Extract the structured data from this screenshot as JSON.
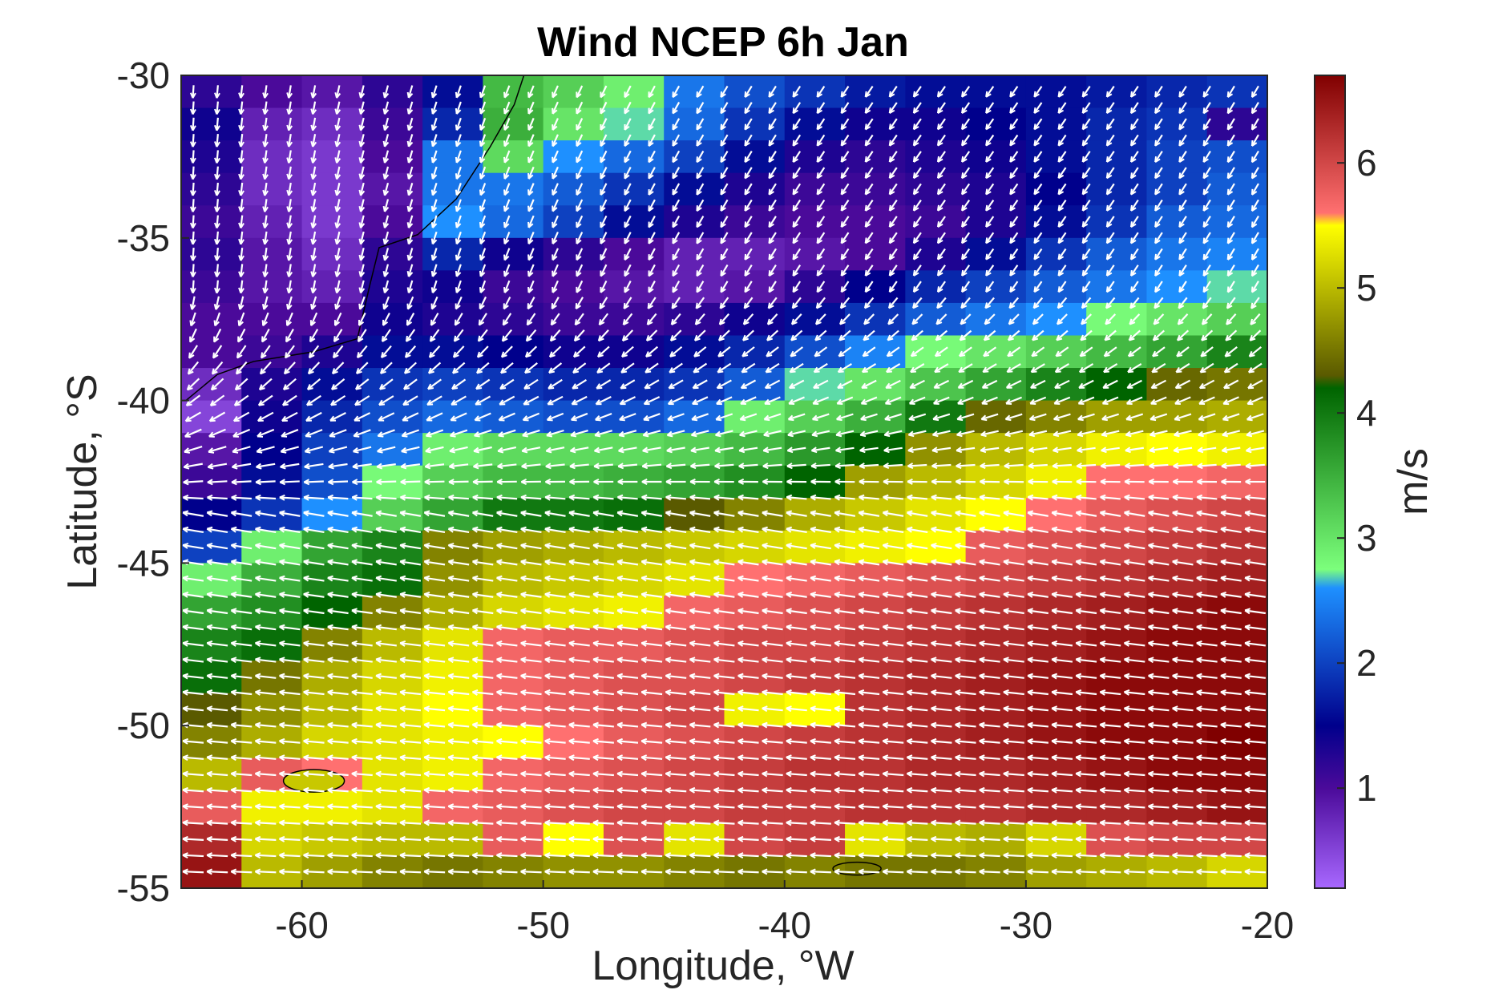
{
  "chart_data": {
    "type": "heatmap",
    "title": "Wind NCEP 6h Jan",
    "xlabel": "Longitude, °W",
    "ylabel": "Latitude, °S",
    "xlim": [
      -65,
      -20
    ],
    "ylim": [
      -55,
      -30
    ],
    "xticks": [
      -60,
      -50,
      -40,
      -30,
      -20
    ],
    "yticks": [
      -30,
      -35,
      -40,
      -45,
      -50,
      -55
    ],
    "colorbar": {
      "label": "m/s",
      "range": [
        0.2,
        6.7
      ],
      "ticks": [
        1,
        2,
        3,
        4,
        5,
        6
      ],
      "colors": [
        "#a868ff",
        "#4b0a9a",
        "#00008c",
        "#1e90ff",
        "#7cff7c",
        "#006400",
        "#5a5a00",
        "#ffff00",
        "#ff7070",
        "#800000"
      ],
      "stops": [
        0.2,
        1.0,
        1.5,
        2.6,
        2.75,
        4.2,
        4.3,
        5.5,
        5.6,
        6.7
      ]
    },
    "grid_speed": {
      "description_rows": "rows from latitude -30.5 (north) to -54.5 (south), 1 degree step; columns from -65 to -20, 2.5 degree step",
      "lat": [
        -30.5,
        -31.5,
        -32.5,
        -33.5,
        -34.5,
        -35.5,
        -36.5,
        -37.5,
        -38.5,
        -39.5,
        -40.5,
        -41.5,
        -42.5,
        -43.5,
        -44.5,
        -45.5,
        -46.5,
        -47.5,
        -48.5,
        -49.5,
        -50.5,
        -51.5,
        -52.5,
        -53.5,
        -54.5
      ],
      "lon": [
        -63.75,
        -61.25,
        -58.75,
        -56.25,
        -53.75,
        -51.25,
        -48.75,
        -46.25,
        -43.75,
        -41.25,
        -38.75,
        -36.25,
        -33.75,
        -31.25,
        -28.75,
        -26.25,
        -23.75,
        -21.25
      ],
      "values": [
        [
          1.2,
          1.0,
          0.9,
          1.2,
          1.6,
          3.4,
          3.2,
          2.9,
          2.4,
          2.1,
          1.9,
          1.7,
          1.6,
          1.6,
          1.6,
          1.7,
          1.8,
          1.9
        ],
        [
          1.4,
          0.8,
          0.7,
          1.1,
          1.8,
          3.5,
          3.0,
          2.7,
          2.3,
          1.9,
          1.6,
          1.4,
          1.4,
          1.5,
          1.6,
          1.8,
          1.9,
          1.2
        ],
        [
          1.3,
          0.7,
          0.6,
          1.0,
          2.4,
          3.1,
          2.6,
          2.3,
          2.0,
          1.6,
          1.3,
          1.2,
          1.3,
          1.4,
          1.6,
          1.8,
          2.0,
          2.1
        ],
        [
          1.2,
          0.7,
          0.6,
          0.9,
          2.4,
          2.4,
          2.2,
          1.9,
          1.6,
          1.3,
          1.1,
          1.1,
          1.2,
          1.3,
          1.5,
          1.8,
          2.0,
          2.2
        ],
        [
          1.1,
          0.8,
          0.6,
          1.0,
          2.6,
          2.3,
          2.0,
          1.6,
          1.3,
          1.1,
          1.0,
          1.0,
          1.1,
          1.3,
          1.6,
          1.9,
          2.2,
          2.3
        ],
        [
          1.2,
          0.9,
          0.7,
          1.2,
          1.8,
          1.4,
          1.2,
          1.0,
          0.8,
          0.8,
          0.9,
          1.0,
          1.3,
          1.6,
          1.9,
          2.2,
          2.4,
          2.5
        ],
        [
          1.1,
          0.9,
          0.8,
          1.3,
          1.4,
          1.1,
          1.0,
          0.9,
          0.8,
          0.9,
          1.2,
          1.5,
          1.8,
          2.0,
          2.2,
          2.4,
          2.6,
          2.7
        ],
        [
          1.0,
          1.0,
          1.0,
          1.4,
          1.3,
          1.2,
          1.1,
          1.1,
          1.2,
          1.4,
          1.6,
          1.9,
          2.2,
          2.4,
          2.6,
          2.8,
          3.0,
          3.2
        ],
        [
          1.0,
          1.1,
          1.3,
          1.6,
          1.6,
          1.5,
          1.4,
          1.4,
          1.6,
          1.8,
          2.1,
          2.5,
          2.8,
          3.0,
          3.2,
          3.4,
          3.6,
          3.9
        ],
        [
          0.7,
          1.3,
          1.6,
          1.9,
          2.0,
          1.9,
          1.8,
          1.8,
          1.9,
          2.2,
          2.7,
          3.0,
          3.3,
          3.6,
          3.9,
          4.2,
          4.4,
          4.5
        ],
        [
          0.5,
          1.4,
          1.8,
          2.1,
          2.3,
          2.2,
          2.1,
          2.1,
          2.3,
          2.9,
          3.2,
          3.5,
          4.0,
          4.4,
          4.6,
          4.8,
          4.8,
          4.9
        ],
        [
          0.9,
          1.5,
          2.0,
          2.4,
          2.9,
          3.1,
          3.1,
          3.1,
          3.2,
          3.4,
          3.7,
          4.2,
          4.7,
          5.0,
          5.2,
          5.4,
          5.5,
          5.4
        ],
        [
          1.1,
          1.6,
          2.1,
          2.8,
          3.2,
          3.4,
          3.4,
          3.5,
          3.6,
          3.8,
          4.2,
          4.8,
          5.0,
          5.2,
          5.4,
          5.6,
          5.6,
          5.7
        ],
        [
          1.5,
          1.9,
          2.6,
          3.2,
          3.6,
          4.0,
          4.0,
          4.1,
          4.3,
          4.6,
          4.9,
          5.1,
          5.3,
          5.5,
          5.6,
          5.8,
          5.9,
          6.0
        ],
        [
          2.0,
          2.9,
          3.6,
          3.9,
          4.6,
          4.8,
          4.9,
          5.0,
          5.1,
          5.2,
          5.3,
          5.4,
          5.5,
          5.8,
          5.9,
          6.0,
          6.1,
          6.2
        ],
        [
          2.9,
          3.5,
          3.9,
          4.1,
          4.7,
          5.0,
          5.1,
          5.2,
          5.3,
          5.6,
          5.7,
          5.8,
          5.9,
          6.0,
          6.1,
          6.2,
          6.3,
          6.4
        ],
        [
          3.6,
          3.8,
          4.2,
          4.6,
          4.9,
          5.2,
          5.3,
          5.4,
          5.7,
          5.8,
          5.9,
          6.0,
          6.1,
          6.2,
          6.3,
          6.4,
          6.5,
          6.6
        ],
        [
          3.9,
          4.1,
          4.6,
          5.0,
          5.3,
          5.7,
          5.8,
          5.8,
          5.9,
          6.0,
          6.0,
          6.1,
          6.2,
          6.3,
          6.4,
          6.5,
          6.6,
          6.6
        ],
        [
          4.1,
          4.5,
          4.9,
          5.2,
          5.4,
          5.7,
          5.8,
          5.9,
          5.9,
          6.0,
          6.1,
          6.2,
          6.3,
          6.4,
          6.5,
          6.6,
          6.6,
          6.6
        ],
        [
          4.3,
          4.7,
          5.0,
          5.3,
          5.5,
          5.7,
          5.8,
          5.9,
          6.0,
          5.4,
          5.5,
          6.2,
          6.3,
          6.4,
          6.5,
          6.6,
          6.6,
          6.6
        ],
        [
          4.6,
          4.9,
          5.2,
          5.3,
          5.4,
          5.5,
          5.6,
          5.8,
          5.9,
          6.0,
          6.1,
          6.2,
          6.3,
          6.4,
          6.5,
          6.6,
          6.6,
          6.7
        ],
        [
          5.0,
          5.8,
          5.6,
          5.3,
          5.4,
          5.7,
          5.8,
          5.9,
          6.0,
          6.1,
          6.2,
          6.2,
          6.3,
          6.3,
          6.4,
          6.5,
          6.6,
          6.6
        ],
        [
          5.8,
          5.4,
          5.4,
          5.3,
          5.7,
          5.8,
          5.9,
          6.0,
          6.0,
          6.1,
          6.1,
          6.2,
          6.2,
          6.2,
          6.3,
          6.3,
          6.4,
          6.5
        ],
        [
          6.3,
          5.2,
          5.1,
          5.0,
          5.0,
          5.8,
          5.5,
          5.9,
          5.3,
          6.0,
          6.1,
          5.3,
          5.0,
          4.9,
          5.2,
          5.9,
          6.0,
          6.0
        ],
        [
          6.5,
          5.0,
          4.8,
          4.6,
          4.5,
          4.6,
          4.7,
          4.7,
          4.6,
          4.5,
          4.6,
          4.5,
          4.5,
          4.6,
          4.8,
          4.9,
          5.0,
          5.2
        ]
      ]
    },
    "wind_vectors": "white arrows; northern region flows southward/southwestward, curving; southern region flows westward to west-southwestward",
    "grid": false
  }
}
